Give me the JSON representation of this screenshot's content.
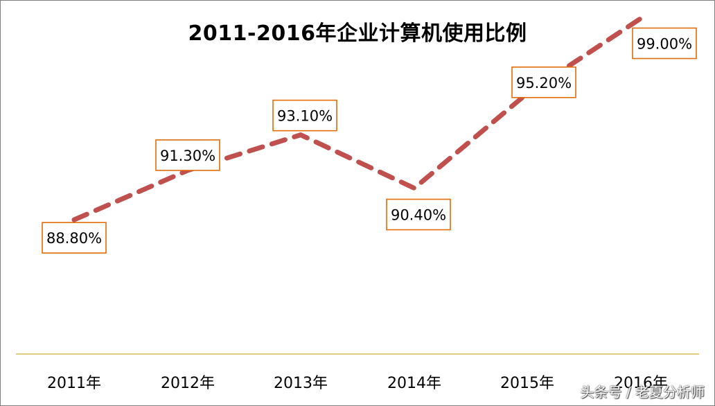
{
  "chart_data": {
    "type": "line",
    "title": "2011-2016年企业计算机使用比例",
    "categories": [
      "2011年",
      "2012年",
      "2013年",
      "2014年",
      "2015年",
      "2016年"
    ],
    "values": [
      88.8,
      91.3,
      93.1,
      90.4,
      95.2,
      99.0
    ],
    "data_labels": [
      "88.80%",
      "91.30%",
      "93.10%",
      "90.40%",
      "95.20%",
      "99.00%"
    ],
    "ylim": [
      82.0,
      100.0
    ],
    "grid": false,
    "legend": "none",
    "line_style": "dashed",
    "colors": {
      "line": "#c0504d",
      "label_border": "#e36c09",
      "axis": "#c9b037",
      "frame": "#7f7f7f"
    }
  },
  "watermark": "头条号 / 老夏分析师"
}
